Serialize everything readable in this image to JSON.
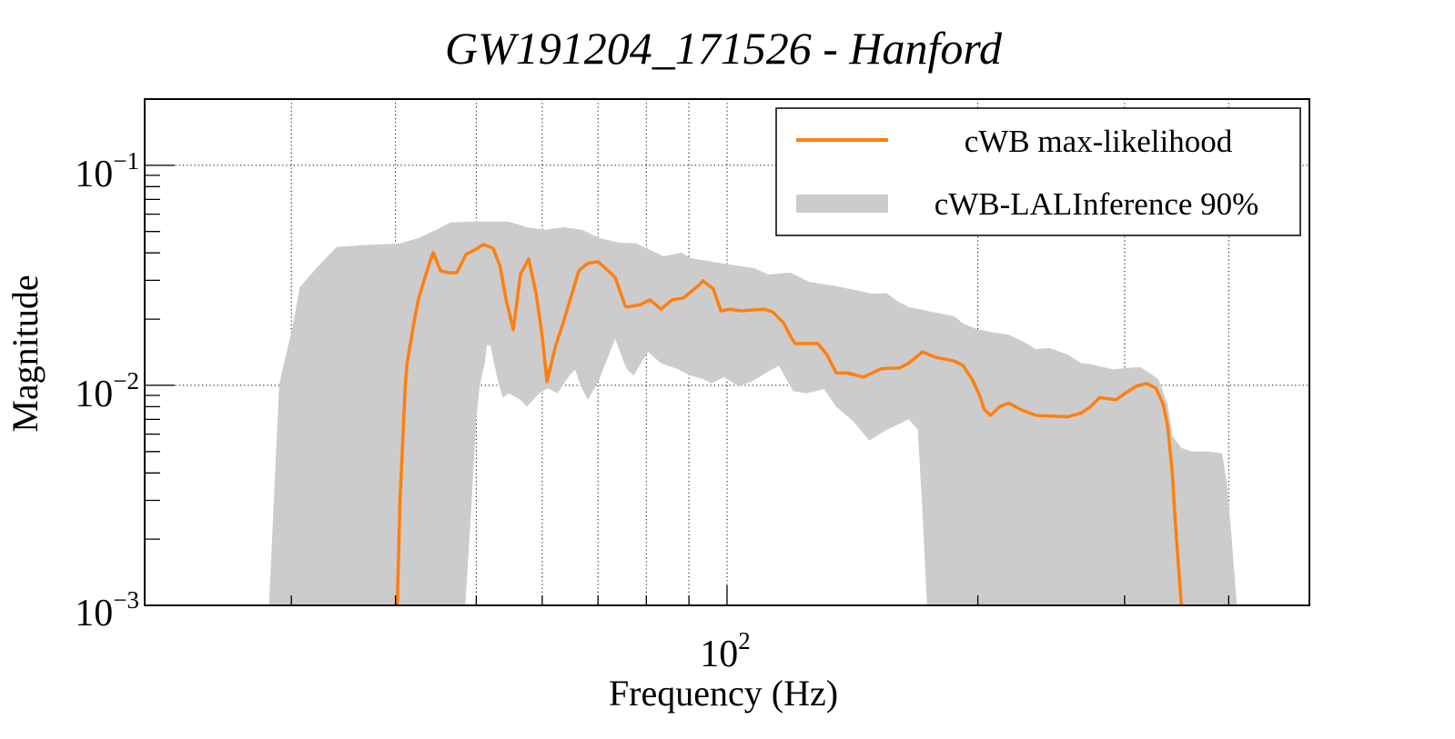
{
  "chart_data": {
    "type": "line",
    "title": "GW191204_171526 - Hanford",
    "xlabel": "Frequency (Hz)",
    "ylabel": "Magnitude",
    "xscale": "log",
    "yscale": "log",
    "xlim": [
      20,
      500
    ],
    "ylim": [
      0.001,
      0.2
    ],
    "grid": true,
    "legend_position": "top-right",
    "x_major_ticks": [
      {
        "value": 100,
        "base": "10",
        "exp": "2"
      }
    ],
    "x_minor_ticks": [
      30,
      40,
      50,
      60,
      70,
      80,
      90,
      200,
      300,
      400
    ],
    "x_grid": [
      20,
      30,
      40,
      50,
      60,
      70,
      80,
      90,
      100,
      200,
      300,
      400
    ],
    "y_major_ticks": [
      {
        "value": 0.1,
        "base": "10",
        "exp": "−1"
      },
      {
        "value": 0.01,
        "base": "10",
        "exp": "−2"
      },
      {
        "value": 0.001,
        "base": "10",
        "exp": "−3"
      }
    ],
    "y_minor_ticks": [
      0.002,
      0.003,
      0.004,
      0.005,
      0.006,
      0.007,
      0.008,
      0.009,
      0.02,
      0.03,
      0.04,
      0.05,
      0.06,
      0.07,
      0.08,
      0.09,
      0.2
    ],
    "y_grid": [
      0.001,
      0.01,
      0.1
    ],
    "series": [
      {
        "name": "cWB max-likelihood",
        "kind": "line",
        "color": "#ff7f0e",
        "points": [
          [
            40.2,
            0.001
          ],
          [
            40.5,
            0.003
          ],
          [
            41.1,
            0.01
          ],
          [
            41.3,
            0.0126
          ],
          [
            42.0,
            0.0184
          ],
          [
            42.6,
            0.0245
          ],
          [
            43.4,
            0.031
          ],
          [
            44.1,
            0.0375
          ],
          [
            44.4,
            0.0401
          ],
          [
            45.3,
            0.0332
          ],
          [
            46.3,
            0.0325
          ],
          [
            47.4,
            0.0325
          ],
          [
            48.6,
            0.0394
          ],
          [
            49.8,
            0.0413
          ],
          [
            51.0,
            0.0437
          ],
          [
            52.4,
            0.042
          ],
          [
            53.4,
            0.0348
          ],
          [
            54.3,
            0.0245
          ],
          [
            55.4,
            0.0179
          ],
          [
            56.5,
            0.032
          ],
          [
            57.8,
            0.0375
          ],
          [
            59.0,
            0.0261
          ],
          [
            60.0,
            0.0167
          ],
          [
            60.8,
            0.0104
          ],
          [
            62.3,
            0.0152
          ],
          [
            63.6,
            0.0193
          ],
          [
            66.4,
            0.0332
          ],
          [
            68.0,
            0.0358
          ],
          [
            70.0,
            0.0365
          ],
          [
            73.4,
            0.031
          ],
          [
            75.5,
            0.0229
          ],
          [
            75.9,
            0.0227
          ],
          [
            78.8,
            0.0233
          ],
          [
            80.8,
            0.0245
          ],
          [
            83.3,
            0.0222
          ],
          [
            86.0,
            0.0245
          ],
          [
            88.6,
            0.0249
          ],
          [
            92.8,
            0.0288
          ],
          [
            93.5,
            0.0299
          ],
          [
            96.3,
            0.0274
          ],
          [
            98.3,
            0.0218
          ],
          [
            100.8,
            0.0222
          ],
          [
            103.8,
            0.0218
          ],
          [
            110.6,
            0.0222
          ],
          [
            113.4,
            0.0216
          ],
          [
            116.8,
            0.0193
          ],
          [
            119.2,
            0.0167
          ],
          [
            120.7,
            0.0155
          ],
          [
            128.5,
            0.0155
          ],
          [
            131.8,
            0.0138
          ],
          [
            135.2,
            0.0114
          ],
          [
            139.6,
            0.0114
          ],
          [
            145.8,
            0.0109
          ],
          [
            153.2,
            0.0119
          ],
          [
            161.1,
            0.012
          ],
          [
            165.2,
            0.0126
          ],
          [
            171.6,
            0.0142
          ],
          [
            178.2,
            0.0134
          ],
          [
            187.4,
            0.0129
          ],
          [
            192.0,
            0.0123
          ],
          [
            197.0,
            0.0106
          ],
          [
            201.0,
            0.009
          ],
          [
            203.5,
            0.0078
          ],
          [
            207.1,
            0.0073
          ],
          [
            212.4,
            0.008
          ],
          [
            217.8,
            0.0083
          ],
          [
            226.2,
            0.0077
          ],
          [
            234.9,
            0.0073
          ],
          [
            256.4,
            0.0072
          ],
          [
            266.3,
            0.0075
          ],
          [
            273.1,
            0.008
          ],
          [
            280.0,
            0.0088
          ],
          [
            292.9,
            0.0086
          ],
          [
            301.8,
            0.0093
          ],
          [
            309.5,
            0.0099
          ],
          [
            319.0,
            0.0102
          ],
          [
            327.2,
            0.0097
          ],
          [
            333.8,
            0.0082
          ],
          [
            338.0,
            0.0065
          ],
          [
            342.3,
            0.004
          ],
          [
            344.9,
            0.0025
          ],
          [
            351.0,
            0.001
          ]
        ]
      },
      {
        "name": "cWB-LALInference 90%",
        "kind": "band",
        "color": "#cccccc",
        "upper": [
          [
            28.2,
            0.001
          ],
          [
            29.0,
            0.01
          ],
          [
            29.3,
            0.012
          ],
          [
            30.1,
            0.0184
          ],
          [
            30.7,
            0.0279
          ],
          [
            32.3,
            0.0348
          ],
          [
            34.0,
            0.0425
          ],
          [
            36.2,
            0.0433
          ],
          [
            40.5,
            0.0441
          ],
          [
            42.6,
            0.0467
          ],
          [
            44.8,
            0.051
          ],
          [
            46.5,
            0.0549
          ],
          [
            49.5,
            0.0555
          ],
          [
            54.7,
            0.0555
          ],
          [
            57.5,
            0.0523
          ],
          [
            60.5,
            0.051
          ],
          [
            63.6,
            0.0523
          ],
          [
            66.9,
            0.051
          ],
          [
            70.3,
            0.0467
          ],
          [
            74.0,
            0.0446
          ],
          [
            77.8,
            0.0441
          ],
          [
            83.9,
            0.0386
          ],
          [
            88.2,
            0.0401
          ],
          [
            90.4,
            0.0379
          ],
          [
            98.8,
            0.0358
          ],
          [
            107.8,
            0.0341
          ],
          [
            112.0,
            0.0319
          ],
          [
            119.2,
            0.0325
          ],
          [
            125.3,
            0.0296
          ],
          [
            135.2,
            0.0282
          ],
          [
            149.5,
            0.0261
          ],
          [
            155.2,
            0.0263
          ],
          [
            161.1,
            0.0238
          ],
          [
            165.2,
            0.0227
          ],
          [
            178.2,
            0.0214
          ],
          [
            187.4,
            0.0206
          ],
          [
            192.0,
            0.0191
          ],
          [
            199.5,
            0.018
          ],
          [
            207.1,
            0.0175
          ],
          [
            217.8,
            0.017
          ],
          [
            226.2,
            0.0159
          ],
          [
            234.9,
            0.0146
          ],
          [
            243.8,
            0.0148
          ],
          [
            256.4,
            0.0138
          ],
          [
            266.3,
            0.0126
          ],
          [
            273.1,
            0.0125
          ],
          [
            290.7,
            0.0118
          ],
          [
            301.8,
            0.012
          ],
          [
            313.4,
            0.0121
          ],
          [
            321.4,
            0.0114
          ],
          [
            329.6,
            0.0106
          ],
          [
            338.0,
            0.0082
          ],
          [
            342.3,
            0.0059
          ],
          [
            351.0,
            0.0052
          ],
          [
            361.6,
            0.005
          ],
          [
            378.4,
            0.005
          ],
          [
            392.9,
            0.0049
          ],
          [
            398.0,
            0.0036
          ],
          [
            403.0,
            0.0021
          ],
          [
            409.2,
            0.001
          ]
        ],
        "lower": [
          [
            28.2,
            0.001
          ],
          [
            48.5,
            0.001
          ],
          [
            49.3,
            0.0027
          ],
          [
            50.0,
            0.0071
          ],
          [
            50.5,
            0.01
          ],
          [
            51.2,
            0.0126
          ],
          [
            51.5,
            0.0152
          ],
          [
            52.0,
            0.0152
          ],
          [
            53.0,
            0.0107
          ],
          [
            53.8,
            0.0088
          ],
          [
            54.7,
            0.0092
          ],
          [
            56.5,
            0.0086
          ],
          [
            57.5,
            0.008
          ],
          [
            59.5,
            0.0092
          ],
          [
            61.0,
            0.0097
          ],
          [
            62.6,
            0.0092
          ],
          [
            64.7,
            0.0111
          ],
          [
            65.7,
            0.0118
          ],
          [
            66.9,
            0.0097
          ],
          [
            68.1,
            0.0086
          ],
          [
            70.3,
            0.0107
          ],
          [
            73.4,
            0.0163
          ],
          [
            75.3,
            0.0126
          ],
          [
            75.9,
            0.0118
          ],
          [
            77.2,
            0.0111
          ],
          [
            80.4,
            0.0142
          ],
          [
            83.3,
            0.0126
          ],
          [
            87.5,
            0.0118
          ],
          [
            90.2,
            0.0111
          ],
          [
            93.5,
            0.0107
          ],
          [
            95.8,
            0.0102
          ],
          [
            99.2,
            0.0109
          ],
          [
            103.3,
            0.0099
          ],
          [
            107.0,
            0.0104
          ],
          [
            111.4,
            0.0114
          ],
          [
            115.4,
            0.0123
          ],
          [
            117.1,
            0.0111
          ],
          [
            120.1,
            0.0094
          ],
          [
            124.4,
            0.0092
          ],
          [
            130.8,
            0.0096
          ],
          [
            135.2,
            0.008
          ],
          [
            142.1,
            0.0068
          ],
          [
            148.2,
            0.0056
          ],
          [
            154.4,
            0.0062
          ],
          [
            165.2,
            0.007
          ],
          [
            169.4,
            0.0063
          ],
          [
            171.6,
            0.0027
          ],
          [
            173.8,
            0.001
          ],
          [
            409.2,
            0.001
          ]
        ]
      }
    ]
  }
}
